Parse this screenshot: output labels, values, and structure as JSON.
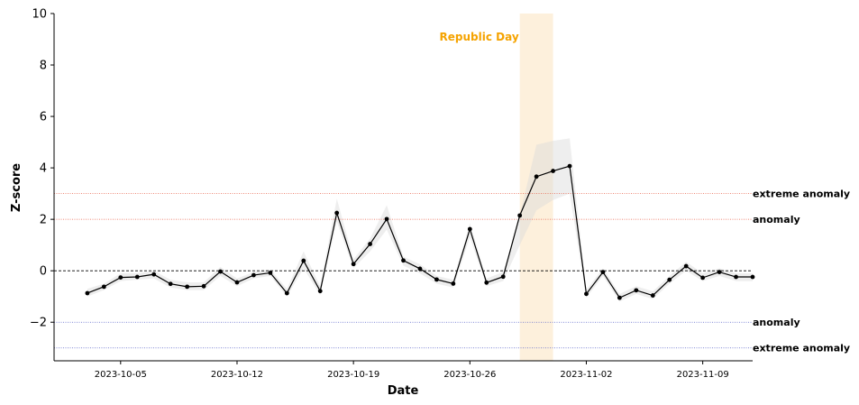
{
  "chart_data": {
    "type": "line",
    "title": "",
    "xlabel": "Date",
    "ylabel": "Z-score",
    "ylim": [
      -3.5,
      10
    ],
    "xlim": [
      "2023-10-01",
      "2023-11-12"
    ],
    "grid": false,
    "x_ticks": [
      "2023-10-05",
      "2023-10-12",
      "2023-10-19",
      "2023-10-26",
      "2023-11-02",
      "2023-11-09"
    ],
    "y_ticks": [
      -2,
      0,
      2,
      4,
      6,
      8,
      10
    ],
    "y_tick_labels": [
      "−2",
      "0",
      "2",
      "4",
      "6",
      "8",
      "10"
    ],
    "series": [
      {
        "color": "#000000",
        "x": [
          "2023-10-03",
          "2023-10-04",
          "2023-10-05",
          "2023-10-06",
          "2023-10-07",
          "2023-10-08",
          "2023-10-09",
          "2023-10-10",
          "2023-10-11",
          "2023-10-12",
          "2023-10-13",
          "2023-10-14",
          "2023-10-15",
          "2023-10-16",
          "2023-10-17",
          "2023-10-18",
          "2023-10-19",
          "2023-10-20",
          "2023-10-21",
          "2023-10-22",
          "2023-10-23",
          "2023-10-24",
          "2023-10-25",
          "2023-10-26",
          "2023-10-27",
          "2023-10-28",
          "2023-10-29",
          "2023-10-30",
          "2023-10-31",
          "2023-11-01",
          "2023-11-02",
          "2023-11-03",
          "2023-11-04",
          "2023-11-05",
          "2023-11-06",
          "2023-11-07",
          "2023-11-08",
          "2023-11-09",
          "2023-11-10",
          "2023-11-11",
          "2023-11-12"
        ],
        "values": [
          -0.87,
          -0.62,
          -0.26,
          -0.24,
          -0.14,
          -0.51,
          -0.62,
          -0.6,
          -0.03,
          -0.45,
          -0.17,
          -0.08,
          -0.87,
          0.39,
          -0.79,
          2.25,
          0.26,
          1.04,
          2.01,
          0.4,
          0.08,
          -0.34,
          -0.5,
          1.62,
          -0.46,
          -0.23,
          2.15,
          3.66,
          3.88,
          4.07,
          -0.9,
          -0.05,
          -1.05,
          -0.76,
          -0.96,
          -0.35,
          0.18,
          -0.27,
          -0.05,
          -0.24,
          -0.24
        ],
        "band": [
          [
            -1.0,
            -0.7
          ],
          [
            -0.75,
            -0.5
          ],
          [
            -0.4,
            -0.1
          ],
          [
            -0.35,
            -0.1
          ],
          [
            -0.3,
            0.0
          ],
          [
            -0.65,
            -0.35
          ],
          [
            -0.75,
            -0.45
          ],
          [
            -0.75,
            -0.45
          ],
          [
            -0.2,
            0.15
          ],
          [
            -0.6,
            -0.3
          ],
          [
            -0.3,
            -0.05
          ],
          [
            -0.2,
            0.05
          ],
          [
            -1.0,
            -0.7
          ],
          [
            0.1,
            0.75
          ],
          [
            -0.95,
            -0.6
          ],
          [
            1.9,
            2.8
          ],
          [
            0.1,
            0.45
          ],
          [
            0.75,
            1.25
          ],
          [
            1.6,
            2.55
          ],
          [
            0.2,
            0.55
          ],
          [
            -0.1,
            0.25
          ],
          [
            -0.5,
            -0.2
          ],
          [
            -0.65,
            -0.35
          ],
          [
            1.3,
            1.85
          ],
          [
            -0.6,
            -0.3
          ],
          [
            -0.4,
            -0.05
          ],
          [
            1.0,
            2.15
          ],
          [
            2.35,
            4.9
          ],
          [
            2.75,
            5.05
          ],
          [
            3.0,
            5.15
          ],
          [
            -1.05,
            -0.75
          ],
          [
            -0.2,
            0.1
          ],
          [
            -1.2,
            -0.9
          ],
          [
            -0.9,
            -0.6
          ],
          [
            -1.1,
            -0.8
          ],
          [
            -0.5,
            -0.2
          ],
          [
            0.0,
            0.35
          ],
          [
            -0.4,
            -0.1
          ],
          [
            -0.2,
            0.1
          ],
          [
            -0.4,
            -0.1
          ],
          [
            -0.4,
            -0.1
          ]
        ]
      }
    ],
    "reference_lines": [
      {
        "y": 3,
        "label": "extreme anomaly",
        "color": "#e8614a"
      },
      {
        "y": 2,
        "label": "anomaly",
        "color": "#e8614a"
      },
      {
        "y": 0,
        "label": "",
        "color": "#000000"
      },
      {
        "y": -2,
        "label": "anomaly",
        "color": "#5a64c8"
      },
      {
        "y": -3,
        "label": "extreme anomaly",
        "color": "#5a64c8"
      }
    ],
    "events": [
      {
        "label": "Republic Day",
        "start": "2023-10-29",
        "end": "2023-10-31",
        "color": "#f5a300",
        "shade_color": "#fdf0dc"
      }
    ]
  }
}
